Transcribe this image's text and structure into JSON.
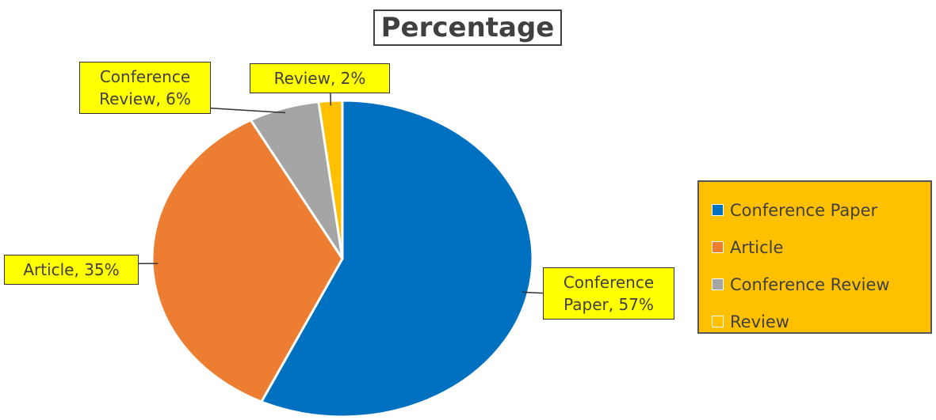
{
  "chart_data": {
    "type": "pie",
    "title": "Percentage",
    "categories": [
      "Conference Paper",
      "Article",
      "Conference Review",
      "Review"
    ],
    "values": [
      57,
      35,
      6,
      2
    ],
    "value_labels": [
      "Conference Paper, 57%",
      "Article, 35%",
      "Conference Review, 6%",
      "Review, 2%"
    ],
    "colors": [
      "#0070c0",
      "#ed7d31",
      "#a5a5a5",
      "#ffc000"
    ],
    "legend": "right"
  }
}
